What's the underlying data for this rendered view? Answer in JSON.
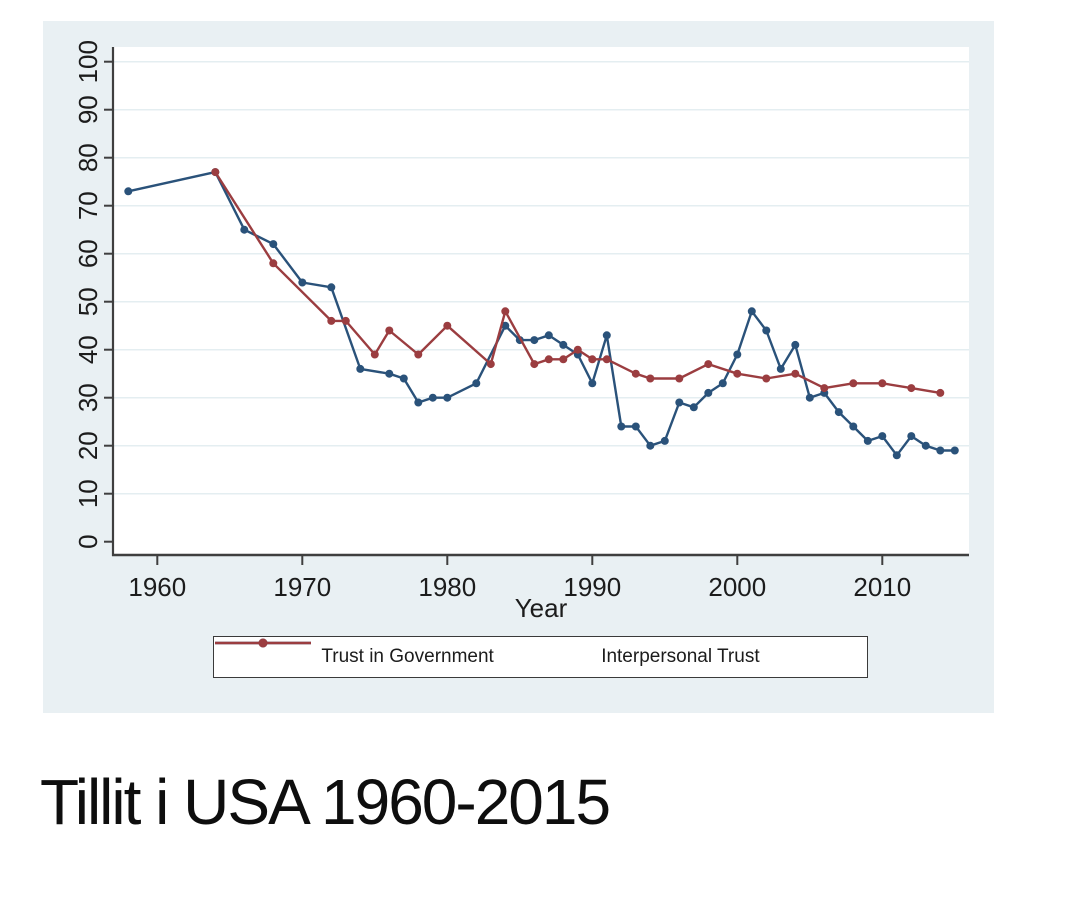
{
  "caption": "Tillit i USA 1960-2015",
  "chart": {
    "background": "#e9f0f3",
    "plot_background": "#ffffff",
    "grid_color": "#e4eef1",
    "axis_color": "#3f3f3f",
    "text_color": "#1c1c1c"
  },
  "chart_data": {
    "type": "line",
    "title": "",
    "xlabel": "Year",
    "ylabel": "",
    "xlim": [
      1957,
      2016
    ],
    "ylim": [
      0,
      100
    ],
    "grid": "horizontal",
    "legend_position": "bottom",
    "x_ticks": [
      1960,
      1970,
      1980,
      1990,
      2000,
      2010
    ],
    "y_ticks": [
      0,
      10,
      20,
      30,
      40,
      50,
      60,
      70,
      80,
      90,
      100
    ],
    "series": [
      {
        "name": "Trust in Government",
        "color": "#2a527a",
        "points": [
          [
            1958,
            73
          ],
          [
            1964,
            77
          ],
          [
            1966,
            65
          ],
          [
            1968,
            62
          ],
          [
            1970,
            54
          ],
          [
            1972,
            53
          ],
          [
            1974,
            36
          ],
          [
            1976,
            35
          ],
          [
            1977,
            34
          ],
          [
            1978,
            29
          ],
          [
            1979,
            30
          ],
          [
            1980,
            30
          ],
          [
            1982,
            33
          ],
          [
            1984,
            45
          ],
          [
            1985,
            42
          ],
          [
            1986,
            42
          ],
          [
            1987,
            43
          ],
          [
            1988,
            41
          ],
          [
            1989,
            39
          ],
          [
            1990,
            33
          ],
          [
            1991,
            43
          ],
          [
            1992,
            24
          ],
          [
            1993,
            24
          ],
          [
            1994,
            20
          ],
          [
            1995,
            21
          ],
          [
            1996,
            29
          ],
          [
            1997,
            28
          ],
          [
            1998,
            31
          ],
          [
            1999,
            33
          ],
          [
            2000,
            39
          ],
          [
            2001,
            48
          ],
          [
            2002,
            44
          ],
          [
            2003,
            36
          ],
          [
            2004,
            41
          ],
          [
            2005,
            30
          ],
          [
            2006,
            31
          ],
          [
            2007,
            27
          ],
          [
            2008,
            24
          ],
          [
            2009,
            21
          ],
          [
            2010,
            22
          ],
          [
            2011,
            18
          ],
          [
            2012,
            22
          ],
          [
            2013,
            20
          ],
          [
            2014,
            19
          ],
          [
            2015,
            19
          ]
        ]
      },
      {
        "name": "Interpersonal Trust",
        "color": "#9b3d40",
        "points": [
          [
            1964,
            77
          ],
          [
            1968,
            58
          ],
          [
            1972,
            46
          ],
          [
            1973,
            46
          ],
          [
            1975,
            39
          ],
          [
            1976,
            44
          ],
          [
            1978,
            39
          ],
          [
            1980,
            45
          ],
          [
            1983,
            37
          ],
          [
            1984,
            48
          ],
          [
            1986,
            37
          ],
          [
            1987,
            38
          ],
          [
            1988,
            38
          ],
          [
            1989,
            40
          ],
          [
            1990,
            38
          ],
          [
            1991,
            38
          ],
          [
            1993,
            35
          ],
          [
            1994,
            34
          ],
          [
            1996,
            34
          ],
          [
            1998,
            37
          ],
          [
            2000,
            35
          ],
          [
            2002,
            34
          ],
          [
            2004,
            35
          ],
          [
            2006,
            32
          ],
          [
            2008,
            33
          ],
          [
            2010,
            33
          ],
          [
            2012,
            32
          ],
          [
            2014,
            31
          ]
        ]
      }
    ]
  }
}
